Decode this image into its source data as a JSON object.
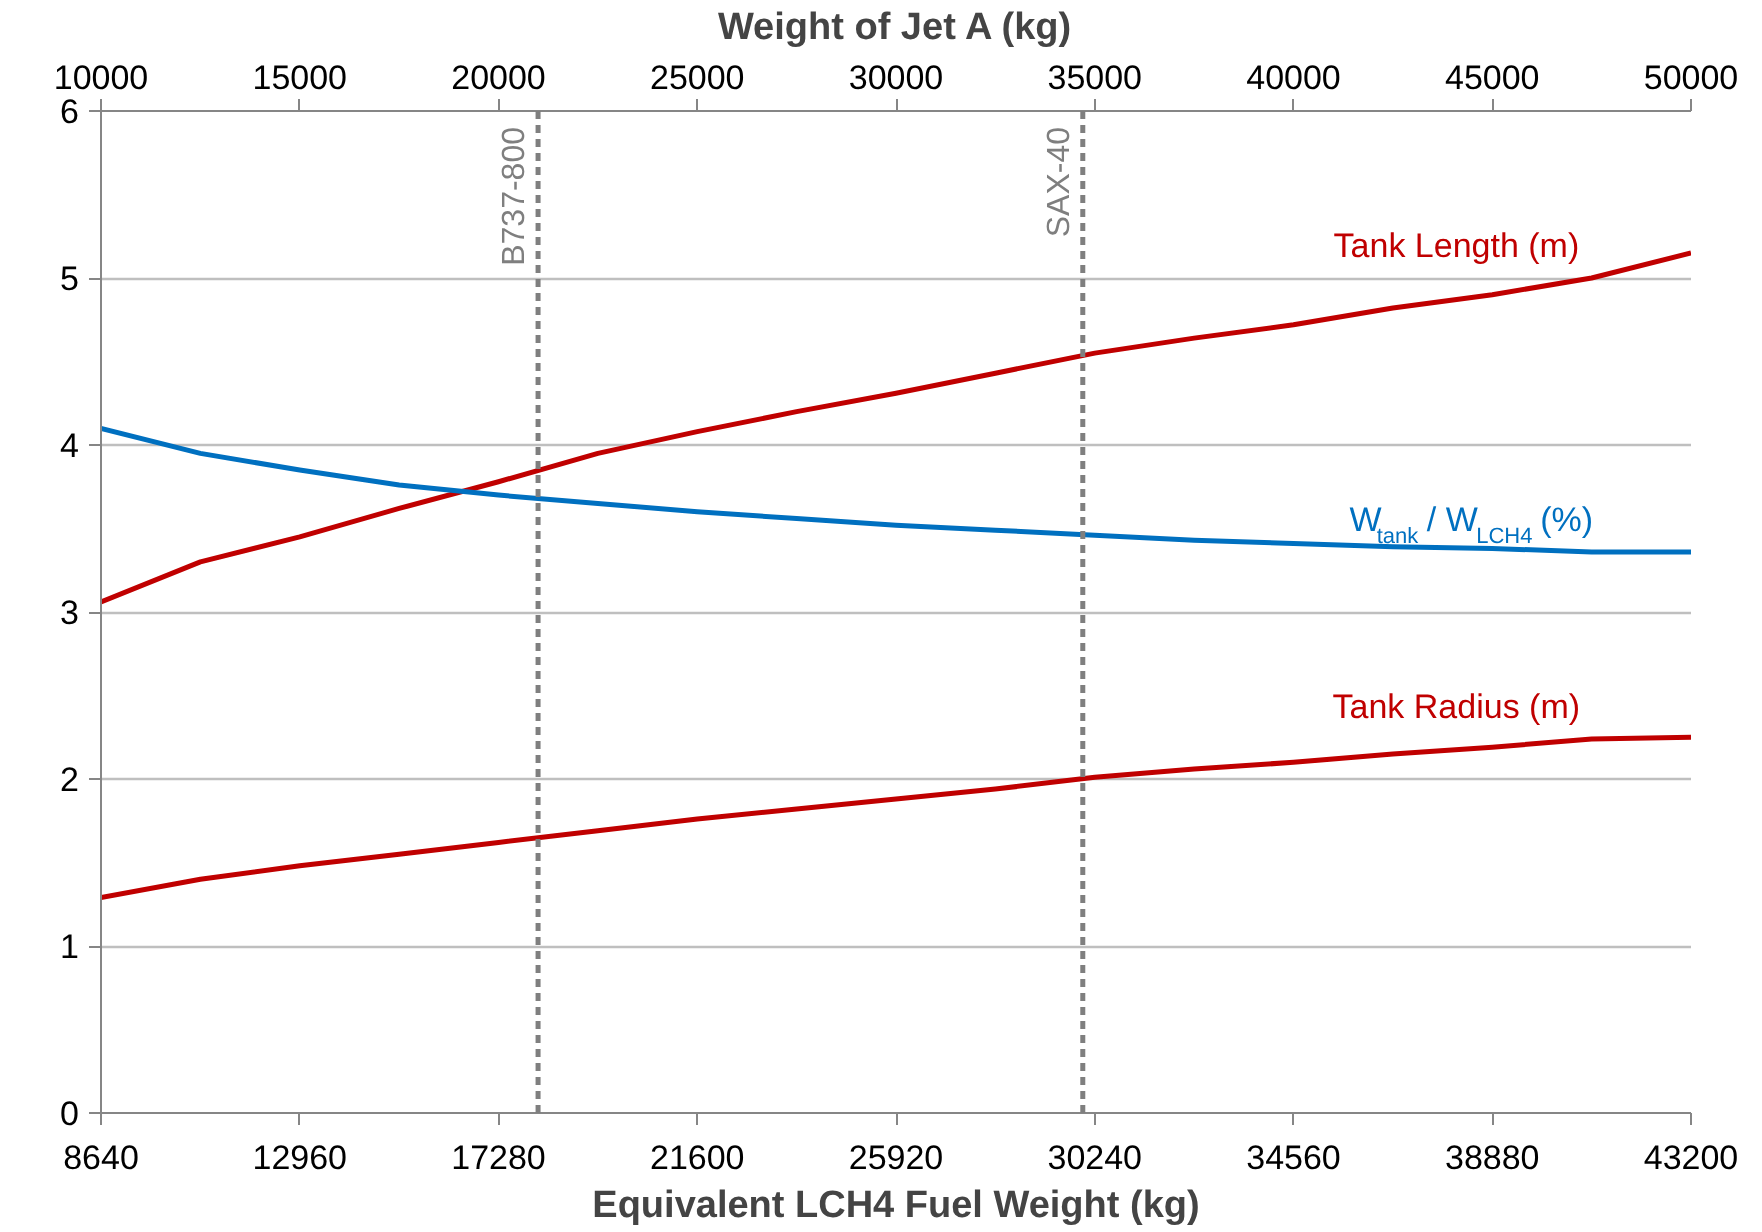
{
  "chart_data": {
    "type": "line",
    "xlabel": "Equivalent LCH4 Fuel Weight (kg)",
    "x2label": "Weight of Jet A (kg)",
    "xlim": [
      8640,
      43200
    ],
    "xticks": [
      8640,
      12960,
      17280,
      21600,
      25920,
      30240,
      34560,
      38880,
      43200
    ],
    "x2lim": [
      10000,
      50000
    ],
    "x2ticks": [
      10000,
      15000,
      20000,
      25000,
      30000,
      35000,
      40000,
      45000,
      50000
    ],
    "ylim": [
      0,
      6
    ],
    "yticks": [
      0,
      1,
      2,
      3,
      4,
      5,
      6
    ],
    "grid": "y",
    "line_style": "solid",
    "marker": "none",
    "x": [
      8640,
      10800,
      12960,
      15120,
      17280,
      19440,
      21600,
      23760,
      25920,
      28080,
      30240,
      32400,
      34560,
      36720,
      38880,
      41040,
      43200
    ],
    "series": [
      {
        "name": "Tank Length (m)",
        "color": "#c00000",
        "values": [
          3.06,
          3.3,
          3.45,
          3.62,
          3.78,
          3.95,
          4.08,
          4.2,
          4.31,
          4.43,
          4.55,
          4.64,
          4.72,
          4.82,
          4.9,
          5.0,
          5.15
        ]
      },
      {
        "name": "W$_{tank}$ / W$_{LCH4}$ (%)",
        "color": "#0070c0",
        "values": [
          4.1,
          3.95,
          3.85,
          3.76,
          3.7,
          3.65,
          3.6,
          3.56,
          3.52,
          3.49,
          3.46,
          3.43,
          3.41,
          3.39,
          3.38,
          3.36,
          3.36
        ]
      },
      {
        "name": "Tank Radius (m)",
        "color": "#c00000",
        "values": [
          1.29,
          1.4,
          1.48,
          1.55,
          1.62,
          1.69,
          1.76,
          1.82,
          1.88,
          1.94,
          2.01,
          2.06,
          2.1,
          2.15,
          2.19,
          2.24,
          2.25
        ]
      }
    ],
    "ref_lines": [
      {
        "axis": "x",
        "value": 18140,
        "label": "B737-800",
        "color": "#7f7f7f",
        "line_style": "dashed"
      },
      {
        "axis": "x",
        "value": 29980,
        "label": "SAX-40",
        "color": "#7f7f7f",
        "line_style": "dashed"
      }
    ]
  }
}
